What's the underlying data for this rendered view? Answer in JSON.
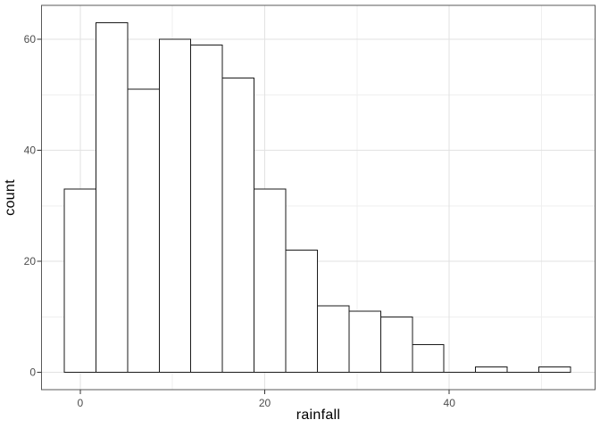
{
  "chart_data": {
    "type": "bar",
    "subtype": "histogram",
    "title": "",
    "xlabel": "rainfall",
    "ylabel": "count",
    "bin_start": -1.74,
    "bin_width": 3.43,
    "bin_counts": [
      33,
      63,
      51,
      60,
      59,
      53,
      33,
      22,
      12,
      11,
      10,
      5,
      0,
      1,
      0,
      1
    ],
    "x_ticks": [
      0,
      20,
      40
    ],
    "x_minor_ticks": [
      10,
      30,
      50
    ],
    "y_ticks": [
      0,
      20,
      40,
      60
    ],
    "y_minor_ticks": [
      10,
      30,
      50
    ],
    "x_range": [
      -4.2,
      55.8
    ],
    "y_range": [
      -3.13,
      66.13
    ],
    "grid": true,
    "legend": false,
    "colors": {
      "background": "#ffffff",
      "panel_background": "#ffffff",
      "panel_border": "#595959",
      "grid_major": "#e2e2e2",
      "grid_minor": "#efefef",
      "bar_fill": "#ffffff",
      "bar_stroke": "#1a1a1a",
      "tick_mark": "#333333",
      "tick_label": "#4d4d4d",
      "axis_title": "#000000"
    }
  }
}
